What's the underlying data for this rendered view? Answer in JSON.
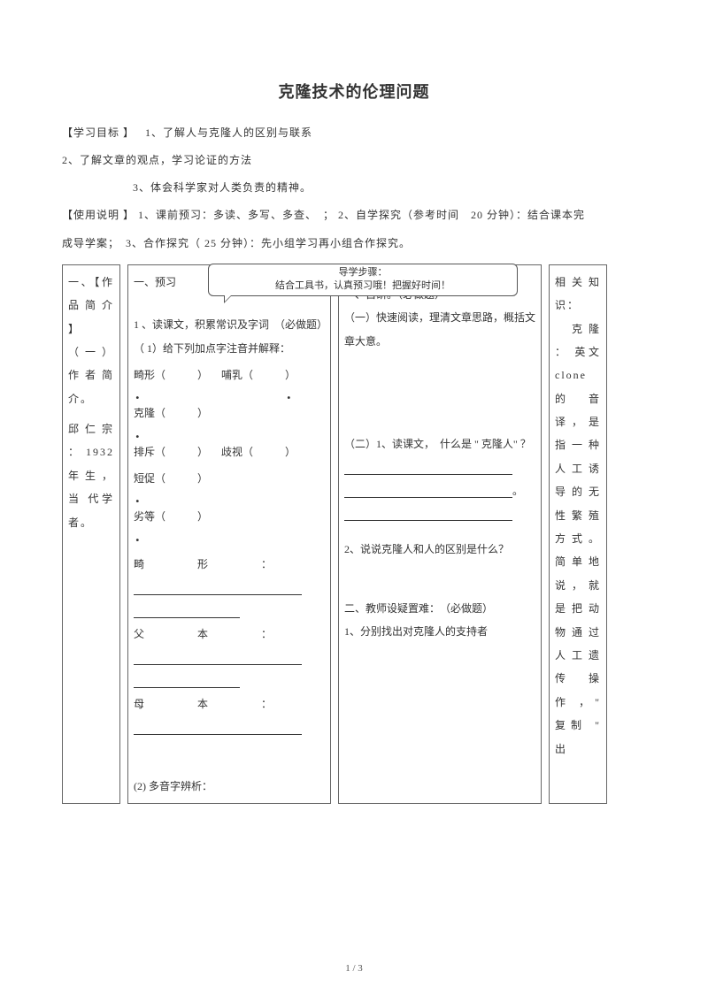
{
  "title": "克隆技术的伦理问题",
  "intro": {
    "goals_label": "【学习目标 】",
    "goal1": "1、了解人与克隆人的区别与联系",
    "goal2": "2、了解文章的观点，学习论证的方法",
    "goal3": "3、体会科学家对人类负责的精神。",
    "usage_label": "【使用说明 】",
    "usage1": "1、课前预习：多读、多写、多查、　；",
    "usage2": "2、自学探究（参考时间　20 分钟）：结合课本完",
    "usage_line2": "成导学案；　3、合作探究（ 25 分钟）：先小组学习再小组合作探究。"
  },
  "callout": {
    "line1": "导学步骤：",
    "line2": "结合工具书，认真预习哦！把握好时间！"
  },
  "col1": {
    "h": "一、【作品简介 】",
    "sub": "（ 一 ） 作者简介。",
    "body": "邱 仁 宗 ：1932  年生，当 代学者。"
  },
  "col2": {
    "h": "一、预习",
    "q1": "1 、读课文，积累常识及字词　（必做题）",
    "q1_1": "（ 1）给下列加点字注音并解释：",
    "items": [
      [
        "畸形（　　　）",
        "哺乳（　　　）"
      ],
      [
        "克隆（　　　）",
        ""
      ],
      [
        "排斥（　　　）",
        "歧视（　　　）"
      ],
      [
        "短促（　　　）",
        ""
      ],
      [
        "劣等（　　　）",
        ""
      ]
    ],
    "def1_label": "畸　　　　　形　　　　　：",
    "def2_label": "父　　　　　本　　　　　：",
    "def3_label": "母　　　　　本　　　　　：",
    "q2": "(2) 多音字辨析："
  },
  "col3": {
    "h1": "一、自研。（必做题）",
    "p1": "（一）快速阅读，理清文章思路，概括文章大意。",
    "p2a": "（二）1、读课文，　什么是 \" 克隆人\" ？",
    "p2b": "2、说说克隆人和人的区别是什么？",
    "h2": "二、教师设疑置难：　（必做题）",
    "p3": "1、分别找出对克隆人的支持者"
  },
  "col4": {
    "h": "相 关 知识：",
    "body": "　克隆 ： 英文 clone 的　音译 ， 是指 一 种人 工 诱导 的 无性 繁 殖方 式 。简 单 地说 ， 就是 把 动物 通 过人 工 遗传　操作 ，\" 复制 \" 出"
  },
  "pagenum": "1 / 3",
  "colors": {
    "text": "#333333",
    "border": "#666666",
    "bg": "#ffffff"
  }
}
